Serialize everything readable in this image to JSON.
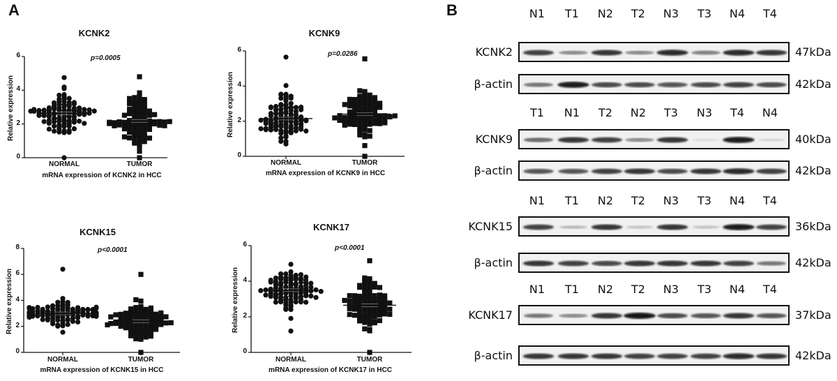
{
  "panels": {
    "A": {
      "label": "A"
    },
    "B": {
      "label": "B"
    }
  },
  "chart_data": [
    {
      "type": "scatter",
      "title": "KCNK2",
      "xlabel": "mRNA expression of KCNK2 in HCC",
      "ylabel": "Relative expression",
      "annotation": "p=0.0005",
      "categories": [
        "NORMAL",
        "TUMOR"
      ],
      "ylim": [
        0,
        6
      ],
      "yticks": [
        0,
        2,
        4,
        6
      ],
      "grid": false,
      "series": [
        {
          "name": "NORMAL",
          "marker": "circle",
          "n": 100,
          "mean": 2.63,
          "min": 0.0,
          "max": 4.75,
          "spread": 0.75
        },
        {
          "name": "TUMOR",
          "marker": "square",
          "n": 100,
          "mean": 2.18,
          "min": 0.0,
          "max": 4.8,
          "spread": 1.0
        }
      ]
    },
    {
      "type": "scatter",
      "title": "KCNK9",
      "xlabel": "mRNA expression of KCNK9 in HCC",
      "ylabel": "Relative expression",
      "annotation": "p=0.0286",
      "categories": [
        "NORMAL",
        "TUMOR"
      ],
      "ylim": [
        0,
        6
      ],
      "yticks": [
        0,
        2,
        4,
        6
      ],
      "grid": false,
      "series": [
        {
          "name": "NORMAL",
          "marker": "circle",
          "n": 100,
          "mean": 2.15,
          "min": 0.7,
          "max": 5.65,
          "spread": 0.95
        },
        {
          "name": "TUMOR",
          "marker": "square",
          "n": 100,
          "mean": 2.4,
          "min": 0.0,
          "max": 5.55,
          "spread": 0.85
        }
      ]
    },
    {
      "type": "scatter",
      "title": "KCNK15",
      "xlabel": "mRNA expression of KCNK15 in HCC",
      "ylabel": "Relative expression",
      "annotation": "p<0.0001",
      "categories": [
        "NORMAL",
        "TUMOR"
      ],
      "ylim": [
        0,
        8
      ],
      "yticks": [
        0,
        2,
        4,
        6,
        8
      ],
      "grid": false,
      "series": [
        {
          "name": "NORMAL",
          "marker": "circle",
          "n": 100,
          "mean": 3.0,
          "min": 1.55,
          "max": 6.4,
          "spread": 0.6
        },
        {
          "name": "TUMOR",
          "marker": "square",
          "n": 100,
          "mean": 2.4,
          "min": 0.0,
          "max": 6.0,
          "spread": 0.9
        }
      ]
    },
    {
      "type": "scatter",
      "title": "KCNK17",
      "xlabel": "mRNA expression of KCNK17 in HCC",
      "ylabel": "Relative expression",
      "annotation": "p<0.0001",
      "categories": [
        "NORMAL",
        "TUMOR"
      ],
      "ylim": [
        0,
        6
      ],
      "yticks": [
        0,
        2,
        4,
        6
      ],
      "grid": false,
      "series": [
        {
          "name": "NORMAL",
          "marker": "circle",
          "n": 100,
          "mean": 3.5,
          "min": 1.2,
          "max": 4.95,
          "spread": 0.8
        },
        {
          "name": "TUMOR",
          "marker": "square",
          "n": 100,
          "mean": 2.65,
          "min": 0.0,
          "max": 5.15,
          "spread": 1.0
        }
      ]
    }
  ],
  "blots": [
    {
      "lanes": [
        "N1",
        "T1",
        "N2",
        "T2",
        "N3",
        "T3",
        "N4",
        "T4"
      ],
      "rows": [
        {
          "label": "KCNK2",
          "kda": "47kDa",
          "intensity": [
            0.8,
            0.45,
            0.85,
            0.45,
            0.9,
            0.5,
            0.9,
            0.85
          ]
        },
        {
          "label": "β-actin",
          "kda": "42kDa",
          "intensity": [
            0.55,
            0.95,
            0.75,
            0.75,
            0.7,
            0.75,
            0.8,
            0.75
          ]
        }
      ]
    },
    {
      "lanes": [
        "T1",
        "N1",
        "T2",
        "N2",
        "T3",
        "N3",
        "T4",
        "N4"
      ],
      "rows": [
        {
          "label": "KCNK9",
          "kda": "40kDa",
          "intensity": [
            0.6,
            0.85,
            0.8,
            0.45,
            0.85,
            0.08,
            0.95,
            0.12
          ]
        },
        {
          "label": "β-actin",
          "kda": "42kDa",
          "intensity": [
            0.7,
            0.7,
            0.8,
            0.85,
            0.75,
            0.85,
            0.9,
            0.8
          ]
        }
      ]
    },
    {
      "lanes": [
        "N1",
        "T1",
        "N2",
        "T2",
        "N3",
        "T3",
        "N4",
        "T4"
      ],
      "rows": [
        {
          "label": "KCNK15",
          "kda": "36kDa",
          "intensity": [
            0.8,
            0.25,
            0.85,
            0.2,
            0.85,
            0.2,
            0.95,
            0.8
          ]
        },
        {
          "label": "β-actin",
          "kda": "42kDa",
          "intensity": [
            0.85,
            0.8,
            0.75,
            0.85,
            0.85,
            0.85,
            0.8,
            0.55
          ]
        }
      ]
    },
    {
      "lanes": [
        "N1",
        "T1",
        "N2",
        "T2",
        "N3",
        "T3",
        "N4",
        "T4"
      ],
      "rows": [
        {
          "label": "KCNK17",
          "kda": "37kDa",
          "intensity": [
            0.55,
            0.45,
            0.85,
            0.98,
            0.75,
            0.7,
            0.85,
            0.7
          ]
        },
        {
          "label": "β-actin",
          "kda": "42kDa",
          "intensity": [
            0.85,
            0.85,
            0.85,
            0.8,
            0.8,
            0.8,
            0.9,
            0.85
          ]
        }
      ]
    }
  ],
  "colors": {
    "ink": "#111111",
    "blot_bg": "#f1f1f1",
    "band": "#1a1a1a"
  }
}
